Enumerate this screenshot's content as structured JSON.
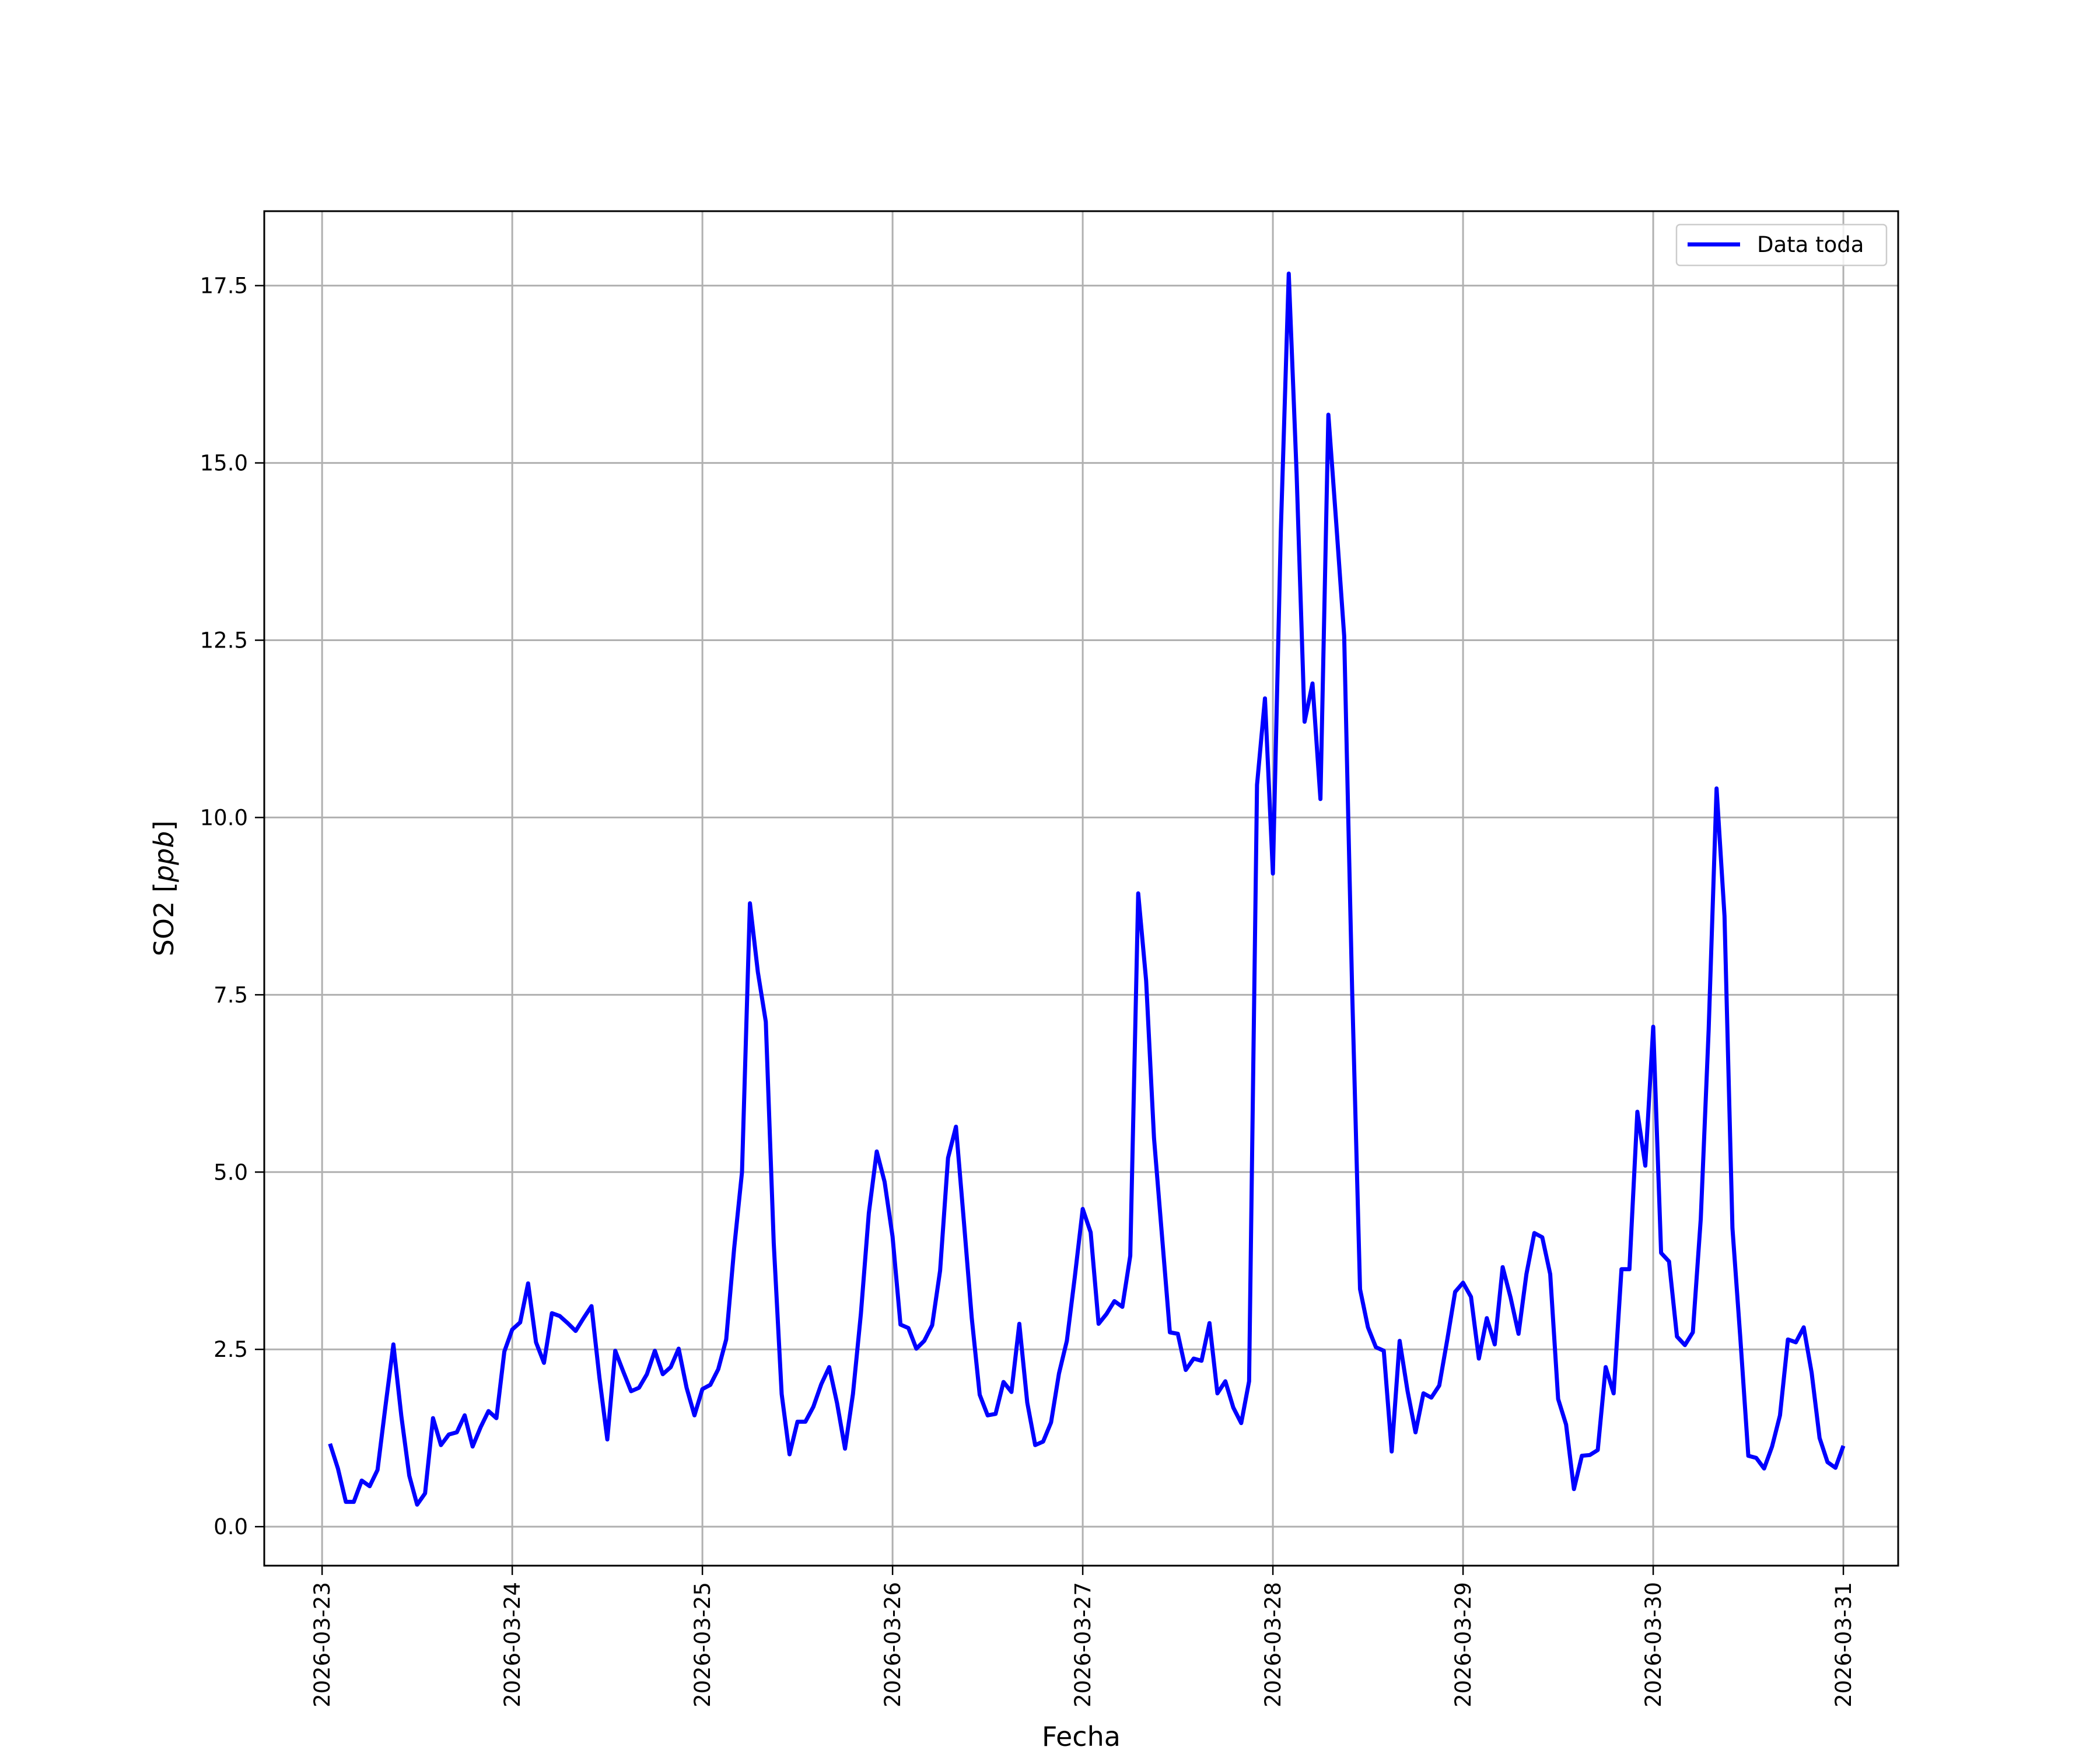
{
  "chart_data": {
    "type": "line",
    "xlabel": "Fecha",
    "ylabel": "SO2 [ppb]",
    "ylabel_parts": {
      "base": "SO2 [",
      "italic": "ppb",
      "end": "]"
    },
    "x_axis_type": "date",
    "xlim": [
      "2026-03-22 16:42",
      "2026-03-31 06:55"
    ],
    "ylim": [
      -0.55,
      18.55
    ],
    "xticks": [
      "2026-03-23",
      "2026-03-24",
      "2026-03-25",
      "2026-03-26",
      "2026-03-27",
      "2026-03-28",
      "2026-03-29",
      "2026-03-30",
      "2026-03-31"
    ],
    "yticks": [
      "0.0",
      "2.5",
      "5.0",
      "7.5",
      "10.0",
      "12.5",
      "15.0",
      "17.5"
    ],
    "grid": true,
    "legend_position": "top-right",
    "series": [
      {
        "name": "Data toda",
        "color": "#0000ff",
        "x": [
          "2026-03-23 01:00",
          "2026-03-23 02:00",
          "2026-03-23 03:00",
          "2026-03-23 04:00",
          "2026-03-23 05:00",
          "2026-03-23 06:00",
          "2026-03-23 07:00",
          "2026-03-23 08:00",
          "2026-03-23 09:00",
          "2026-03-23 10:00",
          "2026-03-23 11:00",
          "2026-03-23 12:00",
          "2026-03-23 13:00",
          "2026-03-23 14:00",
          "2026-03-23 15:00",
          "2026-03-23 16:00",
          "2026-03-23 17:00",
          "2026-03-23 18:00",
          "2026-03-23 19:00",
          "2026-03-23 20:00",
          "2026-03-23 21:00",
          "2026-03-23 22:00",
          "2026-03-23 23:00",
          "2026-03-24 00:00",
          "2026-03-24 01:00",
          "2026-03-24 02:00",
          "2026-03-24 03:00",
          "2026-03-24 04:00",
          "2026-03-24 05:00",
          "2026-03-24 06:00",
          "2026-03-24 07:00",
          "2026-03-24 08:00",
          "2026-03-24 09:00",
          "2026-03-24 10:00",
          "2026-03-24 11:00",
          "2026-03-24 12:00",
          "2026-03-24 13:00",
          "2026-03-24 14:00",
          "2026-03-24 15:00",
          "2026-03-24 16:00",
          "2026-03-24 17:00",
          "2026-03-24 18:00",
          "2026-03-24 19:00",
          "2026-03-24 20:00",
          "2026-03-24 21:00",
          "2026-03-24 22:00",
          "2026-03-24 23:00",
          "2026-03-25 00:00",
          "2026-03-25 01:00",
          "2026-03-25 02:00",
          "2026-03-25 03:00",
          "2026-03-25 04:00",
          "2026-03-25 05:00",
          "2026-03-25 06:00",
          "2026-03-25 07:00",
          "2026-03-25 08:00",
          "2026-03-25 09:00",
          "2026-03-25 10:00",
          "2026-03-25 11:00",
          "2026-03-25 12:00",
          "2026-03-25 13:00",
          "2026-03-25 14:00",
          "2026-03-25 15:00",
          "2026-03-25 16:00",
          "2026-03-25 17:00",
          "2026-03-25 18:00",
          "2026-03-25 19:00",
          "2026-03-25 20:00",
          "2026-03-25 21:00",
          "2026-03-25 22:00",
          "2026-03-25 23:00",
          "2026-03-26 00:00",
          "2026-03-26 01:00",
          "2026-03-26 02:00",
          "2026-03-26 03:00",
          "2026-03-26 04:00",
          "2026-03-26 05:00",
          "2026-03-26 06:00",
          "2026-03-26 07:00",
          "2026-03-26 08:00",
          "2026-03-26 09:00",
          "2026-03-26 10:00",
          "2026-03-26 11:00",
          "2026-03-26 12:00",
          "2026-03-26 13:00",
          "2026-03-26 14:00",
          "2026-03-26 15:00",
          "2026-03-26 16:00",
          "2026-03-26 17:00",
          "2026-03-26 18:00",
          "2026-03-26 19:00",
          "2026-03-26 20:00",
          "2026-03-26 21:00",
          "2026-03-26 22:00",
          "2026-03-26 23:00",
          "2026-03-27 00:00",
          "2026-03-27 01:00",
          "2026-03-27 02:00",
          "2026-03-27 03:00",
          "2026-03-27 04:00",
          "2026-03-27 05:00",
          "2026-03-27 06:00",
          "2026-03-27 07:00",
          "2026-03-27 08:00",
          "2026-03-27 09:00",
          "2026-03-27 10:00",
          "2026-03-27 11:00",
          "2026-03-27 12:00",
          "2026-03-27 13:00",
          "2026-03-27 14:00",
          "2026-03-27 15:00",
          "2026-03-27 16:00",
          "2026-03-27 17:00",
          "2026-03-27 18:00",
          "2026-03-27 19:00",
          "2026-03-27 20:00",
          "2026-03-27 21:00",
          "2026-03-27 22:00",
          "2026-03-27 23:00",
          "2026-03-28 00:00",
          "2026-03-28 01:00",
          "2026-03-28 02:00",
          "2026-03-28 03:00",
          "2026-03-28 04:00",
          "2026-03-28 05:00",
          "2026-03-28 06:00",
          "2026-03-28 07:00",
          "2026-03-28 08:00",
          "2026-03-28 09:00",
          "2026-03-28 10:00",
          "2026-03-28 11:00",
          "2026-03-28 12:00",
          "2026-03-28 13:00",
          "2026-03-28 14:00",
          "2026-03-28 15:00",
          "2026-03-28 16:00",
          "2026-03-28 17:00",
          "2026-03-28 18:00",
          "2026-03-28 19:00",
          "2026-03-28 20:00",
          "2026-03-28 21:00",
          "2026-03-28 22:00",
          "2026-03-28 23:00",
          "2026-03-29 00:00",
          "2026-03-29 01:00",
          "2026-03-29 02:00",
          "2026-03-29 03:00",
          "2026-03-29 04:00",
          "2026-03-29 05:00",
          "2026-03-29 06:00",
          "2026-03-29 07:00",
          "2026-03-29 08:00",
          "2026-03-29 09:00",
          "2026-03-29 10:00",
          "2026-03-29 11:00",
          "2026-03-29 12:00",
          "2026-03-29 13:00",
          "2026-03-29 14:00",
          "2026-03-29 15:00",
          "2026-03-29 16:00",
          "2026-03-29 17:00",
          "2026-03-29 18:00",
          "2026-03-29 19:00",
          "2026-03-29 20:00",
          "2026-03-29 21:00",
          "2026-03-29 22:00",
          "2026-03-29 23:00",
          "2026-03-30 00:00",
          "2026-03-30 01:00",
          "2026-03-30 02:00",
          "2026-03-30 03:00",
          "2026-03-30 04:00",
          "2026-03-30 05:00",
          "2026-03-30 06:00",
          "2026-03-30 07:00",
          "2026-03-30 08:00",
          "2026-03-30 09:00",
          "2026-03-30 10:00",
          "2026-03-30 11:00",
          "2026-03-30 12:00",
          "2026-03-30 13:00",
          "2026-03-30 14:00",
          "2026-03-30 15:00",
          "2026-03-30 16:00",
          "2026-03-30 17:00",
          "2026-03-30 18:00",
          "2026-03-30 19:00",
          "2026-03-30 20:00",
          "2026-03-30 21:00",
          "2026-03-30 22:00",
          "2026-03-30 23:00",
          "2026-03-31 00:00"
        ],
        "y": [
          1.17,
          0.82,
          0.35,
          0.35,
          0.65,
          0.57,
          0.8,
          1.7,
          2.57,
          1.56,
          0.72,
          0.31,
          0.47,
          1.53,
          1.15,
          1.3,
          1.33,
          1.57,
          1.13,
          1.4,
          1.63,
          1.53,
          2.47,
          2.78,
          2.88,
          3.43,
          2.6,
          2.31,
          3.01,
          2.97,
          2.87,
          2.76,
          2.94,
          3.11,
          2.1,
          1.23,
          2.48,
          2.19,
          1.91,
          1.96,
          2.15,
          2.48,
          2.15,
          2.25,
          2.51,
          1.96,
          1.57,
          1.94,
          2.0,
          2.22,
          2.64,
          3.92,
          5.0,
          8.79,
          7.82,
          7.12,
          4.0,
          1.87,
          1.02,
          1.48,
          1.48,
          1.69,
          2.01,
          2.25,
          1.74,
          1.1,
          1.87,
          3.0,
          4.42,
          5.29,
          4.86,
          4.09,
          2.85,
          2.8,
          2.51,
          2.62,
          2.84,
          3.61,
          5.2,
          5.64,
          4.3,
          2.94,
          1.86,
          1.57,
          1.59,
          2.04,
          1.9,
          2.86,
          1.75,
          1.15,
          1.2,
          1.47,
          2.16,
          2.62,
          3.52,
          4.48,
          4.15,
          2.86,
          3.0,
          3.18,
          3.1,
          3.82,
          8.93,
          7.7,
          5.48,
          4.11,
          2.74,
          2.72,
          2.21,
          2.37,
          2.34,
          2.87,
          1.88,
          2.05,
          1.68,
          1.46,
          2.05,
          10.46,
          11.68,
          9.21,
          14.04,
          17.67,
          14.84,
          11.35,
          11.89,
          10.26,
          15.68,
          14.14,
          12.56,
          7.58,
          3.35,
          2.81,
          2.53,
          2.48,
          1.06,
          2.62,
          1.91,
          1.33,
          1.88,
          1.82,
          1.99,
          2.63,
          3.31,
          3.44,
          3.24,
          2.37,
          2.94,
          2.57,
          3.66,
          3.23,
          2.72,
          3.56,
          4.14,
          4.08,
          3.56,
          1.8,
          1.44,
          0.53,
          1.0,
          1.01,
          1.08,
          2.25,
          1.88,
          3.63,
          3.63,
          5.85,
          5.09,
          7.05,
          3.86,
          3.74,
          2.68,
          2.56,
          2.74,
          4.34,
          7.0,
          10.41,
          8.61,
          4.21,
          2.65,
          1.0,
          0.97,
          0.82,
          1.13,
          1.57,
          2.64,
          2.6,
          2.81,
          2.17,
          1.25,
          0.91,
          0.83,
          1.14
        ]
      }
    ]
  }
}
